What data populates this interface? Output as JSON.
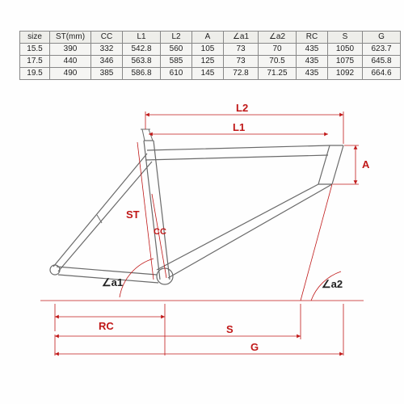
{
  "table": {
    "headers": [
      "size",
      "ST(mm)",
      "CC",
      "L1",
      "L2",
      "A",
      "∠a1",
      "∠a2",
      "RC",
      "S",
      "G"
    ],
    "rows": [
      [
        "15.5",
        "390",
        "332",
        "542.8",
        "560",
        "105",
        "73",
        "70",
        "435",
        "1050",
        "623.7"
      ],
      [
        "17.5",
        "440",
        "346",
        "563.8",
        "585",
        "125",
        "73",
        "70.5",
        "435",
        "1075",
        "645.8"
      ],
      [
        "19.5",
        "490",
        "385",
        "586.8",
        "610",
        "145",
        "72.8",
        "71.25",
        "435",
        "1092",
        "664.6"
      ]
    ],
    "header_bg": "#eeeeea",
    "body_bg": "#f5f5f3",
    "border_color": "#888888",
    "text_color": "#222222",
    "font_size": 10
  },
  "diagram": {
    "labels": {
      "L2": "L2",
      "L1": "L1",
      "A": "A",
      "ST": "ST",
      "CC": "CC",
      "a1": "∠a1",
      "a2": "∠a2",
      "RC": "RC",
      "S": "S",
      "G": "G"
    },
    "colors": {
      "frame": "#6a6a6a",
      "dim_line": "#c01818",
      "dim_text": "#c01818",
      "angle_text": "#222222",
      "background": "#fefefe"
    },
    "line_widths": {
      "frame_outer": 1.2,
      "frame_inner": 1.0,
      "dim": 0.8
    },
    "font_size_label": 13
  }
}
